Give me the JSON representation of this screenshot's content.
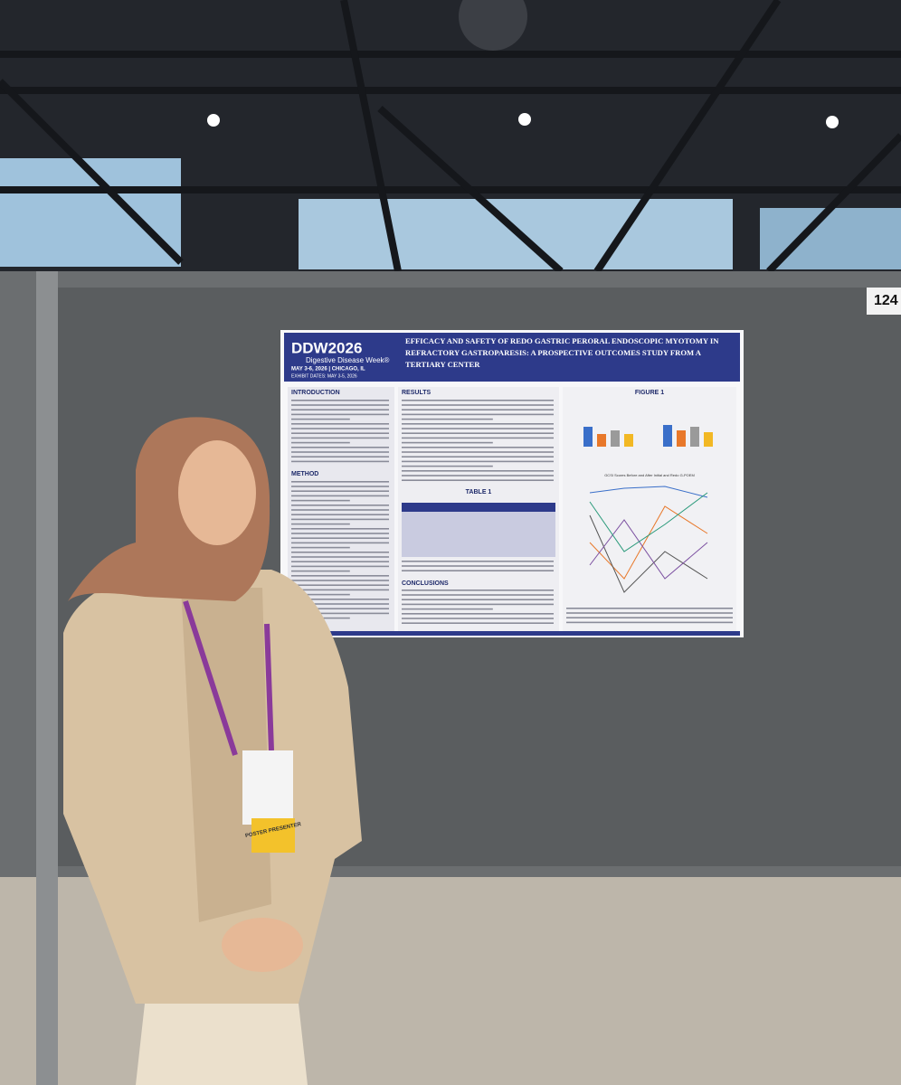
{
  "board_number": "124",
  "poster": {
    "logo": "DDW2026",
    "logo_subtitle": "Digestive Disease Week®",
    "dates": "MAY 3-6, 2026 | CHICAGO, IL",
    "exhibit_dates": "EXHIBIT DATES: MAY 3-5, 2026",
    "title_lines": [
      "EFFICACY AND SAFETY OF REDO GASTRIC PERORAL ENDOSCOPIC MYOTOMY IN",
      "REFRACTORY GASTROPARESIS: A PROSPECTIVE OUTCOMES STUDY FROM A",
      "TERTIARY CENTER"
    ],
    "sections": {
      "introduction": "INTRODUCTION",
      "method": "METHOD",
      "results": "RESULTS",
      "table": "TABLE 1",
      "figure": "FIGURE 1",
      "conclusions": "CONCLUSIONS"
    },
    "figure_caption": "GCSI Scores Before and After Initial and Redo G-POEM"
  },
  "badge": "POSTER PRESENTER"
}
